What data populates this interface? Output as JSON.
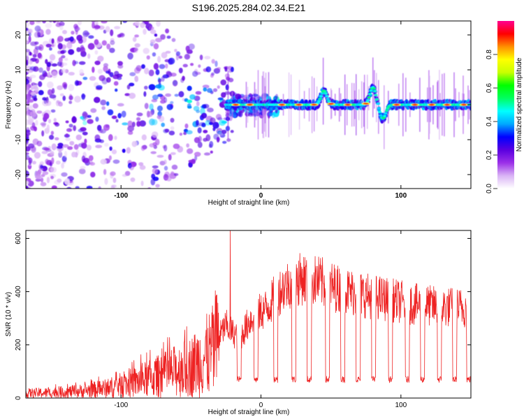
{
  "title": "S196.2025.284.02.34.E21",
  "chart_data": [
    {
      "type": "heatmap",
      "xlabel": "Height of straight line (km)",
      "ylabel": "Frequency (Hz)",
      "xlim": [
        -168,
        150
      ],
      "ylim": [
        -24,
        24
      ],
      "xticks": [
        -100,
        0,
        100
      ],
      "yticks": [
        -20,
        -10,
        0,
        10,
        20
      ],
      "colorbar": {
        "label": "Normalized spectral amplitude",
        "range": [
          0,
          1
        ],
        "ticks": [
          0.0,
          0.2,
          0.4,
          0.6,
          0.8
        ],
        "colors": [
          "#ffffff",
          "#d9b3f5",
          "#9b30e8",
          "#5a00e0",
          "#0000ff",
          "#00a8ff",
          "#00ffff",
          "#00ff60",
          "#00ff00",
          "#c8ff00",
          "#ffff00",
          "#ff9000",
          "#ff0000",
          "#ff0090"
        ]
      },
      "ridge": {
        "center_hz": 0,
        "spread_above_minus_20km": 10,
        "spread_below_minus_20km": 1,
        "excursions": [
          {
            "x": 45,
            "freq_hz": 4
          },
          {
            "x": 80,
            "freq_hz": 5
          },
          {
            "x": 87,
            "freq_hz": -4
          }
        ],
        "peaks_x_km": [
          -18,
          -8,
          15,
          27,
          38,
          50,
          62,
          75,
          97,
          110,
          122,
          133,
          145
        ]
      }
    },
    {
      "type": "line",
      "xlabel": "Height of straight line (km)",
      "ylabel": "SNR (10 * v/v)",
      "xlim": [
        -168,
        150
      ],
      "ylim": [
        0,
        630
      ],
      "xticks": [
        -100,
        0,
        100
      ],
      "yticks": [
        0,
        200,
        400,
        600
      ],
      "color": "#ee2222",
      "series": [
        {
          "name": "SNR",
          "x": [
            -168,
            -150,
            -130,
            -110,
            -90,
            -70,
            -50,
            -35,
            -25,
            -20,
            -15,
            -10,
            -5,
            0,
            5,
            10,
            15,
            20,
            25,
            30,
            35,
            40,
            45,
            55,
            70,
            90,
            110,
            130,
            150
          ],
          "y": [
            20,
            22,
            28,
            40,
            65,
            95,
            130,
            190,
            280,
            250,
            230,
            280,
            320,
            330,
            350,
            390,
            420,
            440,
            450,
            460,
            455,
            450,
            440,
            420,
            400,
            380,
            360,
            350,
            345
          ]
        }
      ],
      "spike": {
        "x": -22,
        "y": 630
      },
      "dropouts": {
        "start_x_km": [
          -17,
          -5,
          9,
          22,
          33,
          46,
          57,
          68,
          79,
          91,
          103,
          114,
          126,
          137,
          147
        ],
        "width_km": 3,
        "level": 70
      }
    }
  ]
}
